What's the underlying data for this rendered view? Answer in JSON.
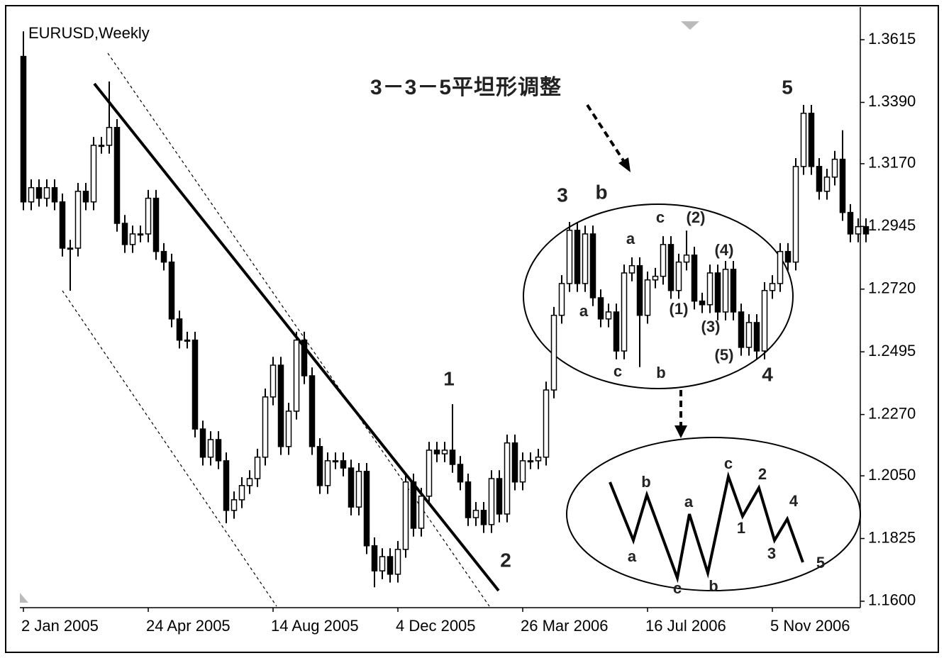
{
  "chart_data": {
    "type": "candlestick",
    "title": "EURUSD,Weekly",
    "annotations": [
      "3－3－5平坦形调整",
      "5",
      "3",
      "b",
      "1",
      "2",
      "4",
      "c",
      "(2)",
      "(4)",
      "a",
      "a",
      "(1)",
      "(3)",
      "(5)",
      "c",
      "b",
      "b",
      "a",
      "a",
      "c",
      "b",
      "c",
      "1",
      "2",
      "3",
      "4",
      "5"
    ],
    "categories": [
      "2 Jan 2005",
      null,
      null,
      null,
      null,
      null,
      null,
      null,
      null,
      null,
      null,
      null,
      null,
      null,
      null,
      null,
      "24 Apr 2005",
      null,
      null,
      null,
      null,
      null,
      null,
      null,
      null,
      null,
      null,
      null,
      null,
      null,
      null,
      null,
      "14 Aug 2005",
      null,
      null,
      null,
      null,
      null,
      null,
      null,
      null,
      null,
      null,
      null,
      null,
      null,
      null,
      null,
      "4 Dec 2005",
      null,
      null,
      null,
      null,
      null,
      null,
      null,
      null,
      null,
      null,
      null,
      null,
      null,
      null,
      null,
      "26 Mar 2006",
      null,
      null,
      null,
      null,
      null,
      null,
      null,
      null,
      null,
      null,
      null,
      null,
      null,
      null,
      null,
      "16 Jul 2006",
      null,
      null,
      null,
      null,
      null,
      null,
      null,
      null,
      null,
      null,
      null,
      null,
      null,
      null,
      null,
      "5 Nov 2006",
      null,
      null,
      null,
      null,
      null,
      null,
      null,
      null,
      null,
      null,
      null,
      null
    ],
    "open": [
      1.3555,
      1.3033,
      1.3084,
      1.3046,
      1.3084,
      1.3033,
      1.2867,
      1.2867,
      1.3071,
      1.3033,
      1.3236,
      1.3236,
      1.33,
      1.2956,
      1.288,
      1.2918,
      1.2918,
      1.3046,
      1.2855,
      1.2817,
      1.2613,
      1.2537,
      1.2537,
      1.2218,
      1.2117,
      1.218,
      1.2104,
      1.1926,
      1.1964,
      1.2015,
      1.204,
      1.2117,
      1.2333,
      1.2447,
      1.2155,
      1.2282,
      1.2537,
      1.2409,
      1.2155,
      1.2015,
      1.2104,
      1.2104,
      1.2078,
      1.1938,
      1.2066,
      1.1799,
      1.1709,
      1.176,
      1.1697,
      1.1786,
      1.2028,
      1.1862,
      1.1977,
      1.2142,
      1.2129,
      1.2142,
      1.2091,
      1.2028,
      1.19,
      1.1926,
      1.1875,
      1.204,
      1.1913,
      1.2168,
      1.2028,
      1.2104,
      1.2104,
      1.2117,
      1.2358,
      1.2626,
      1.274,
      1.2931,
      1.274,
      1.2918,
      1.2689,
      1.2613,
      1.2638,
      1.2498,
      1.2778,
      1.2804,
      1.2626,
      1.2753,
      1.2766,
      1.288,
      1.2715,
      1.2817,
      1.2842,
      1.2677,
      1.2664,
      1.2778,
      1.2638,
      1.2791,
      1.2638,
      1.2511,
      1.26,
      1.2498,
      1.2715,
      1.274,
      1.2855,
      1.2817,
      1.316,
      1.3351,
      1.316,
      1.3071,
      1.3122,
      1.3186,
      1.2995,
      1.2918,
      1.2944
    ],
    "high": [
      1.3645,
      1.3114,
      1.3114,
      1.3114,
      1.3114,
      1.3063,
      1.2897,
      1.3101,
      1.3101,
      1.3266,
      1.3266,
      1.3465,
      1.333,
      1.2986,
      1.2948,
      1.2948,
      1.3076,
      1.3076,
      1.2885,
      1.2847,
      1.2643,
      1.2567,
      1.2567,
      1.2248,
      1.221,
      1.221,
      1.2134,
      1.1994,
      1.2045,
      1.207,
      1.2147,
      1.2363,
      1.2477,
      1.2477,
      1.2312,
      1.2567,
      1.2567,
      1.2439,
      1.2185,
      1.2134,
      1.2134,
      1.2134,
      1.2108,
      1.2096,
      1.2096,
      1.1829,
      1.179,
      1.179,
      1.1816,
      1.2058,
      1.2058,
      1.2007,
      1.2172,
      1.2172,
      1.2172,
      1.2307,
      1.2121,
      1.2058,
      1.1956,
      1.1956,
      1.207,
      1.207,
      1.2198,
      1.2198,
      1.2134,
      1.2134,
      1.2147,
      1.2388,
      1.2656,
      1.277,
      1.2961,
      1.2961,
      1.2948,
      1.2948,
      1.2719,
      1.2668,
      1.2668,
      1.2808,
      1.2834,
      1.2834,
      1.2783,
      1.2796,
      1.291,
      1.291,
      1.2847,
      1.293,
      1.2872,
      1.2707,
      1.2808,
      1.2808,
      1.2821,
      1.2821,
      1.2668,
      1.263,
      1.263,
      1.2745,
      1.277,
      1.2885,
      1.2885,
      1.319,
      1.3381,
      1.3381,
      1.319,
      1.3152,
      1.3216,
      1.329,
      1.3025,
      1.2974,
      1.2974
    ],
    "low": [
      1.3003,
      1.3003,
      1.3016,
      1.3016,
      1.3003,
      1.2837,
      1.2714,
      1.2837,
      1.3003,
      1.3003,
      1.3206,
      1.3206,
      1.2926,
      1.285,
      1.285,
      1.2888,
      1.2888,
      1.2825,
      1.2787,
      1.2583,
      1.2507,
      1.2507,
      1.2188,
      1.2087,
      1.2087,
      1.2074,
      1.188,
      1.1896,
      1.1934,
      1.1985,
      1.201,
      1.2087,
      1.2303,
      1.2125,
      1.2125,
      1.2252,
      1.2379,
      1.2125,
      1.1985,
      1.1985,
      1.2074,
      1.2048,
      1.1908,
      1.1908,
      1.1769,
      1.165,
      1.1679,
      1.1667,
      1.1667,
      1.1756,
      1.1832,
      1.1832,
      1.1947,
      1.2099,
      1.2099,
      1.2061,
      1.1998,
      1.187,
      1.187,
      1.1845,
      1.1845,
      1.1883,
      1.1883,
      1.1998,
      1.1998,
      1.2074,
      1.2074,
      1.2087,
      1.2328,
      1.2596,
      1.271,
      1.271,
      1.271,
      1.2659,
      1.2583,
      1.2583,
      1.2468,
      1.2468,
      1.2748,
      1.244,
      1.2596,
      1.2723,
      1.2736,
      1.2685,
      1.2685,
      1.2787,
      1.2647,
      1.2634,
      1.2634,
      1.2608,
      1.2608,
      1.2608,
      1.2481,
      1.2481,
      1.2468,
      1.2468,
      1.2685,
      1.271,
      1.2787,
      1.2787,
      1.313,
      1.313,
      1.3041,
      1.3041,
      1.3092,
      1.2965,
      1.2888,
      1.2888,
      1.2888
    ],
    "close": [
      1.3033,
      1.3084,
      1.3046,
      1.3084,
      1.3033,
      1.2867,
      1.2867,
      1.3071,
      1.3033,
      1.3236,
      1.3236,
      1.33,
      1.2956,
      1.288,
      1.2918,
      1.2918,
      1.3046,
      1.2855,
      1.2817,
      1.2613,
      1.2537,
      1.2537,
      1.2218,
      1.2117,
      1.218,
      1.2104,
      1.1926,
      1.1964,
      1.2015,
      1.204,
      1.2117,
      1.2333,
      1.2447,
      1.2155,
      1.2282,
      1.2537,
      1.2409,
      1.2155,
      1.2015,
      1.2104,
      1.2104,
      1.2078,
      1.1938,
      1.2066,
      1.1799,
      1.1709,
      1.176,
      1.1697,
      1.1786,
      1.2028,
      1.1862,
      1.1977,
      1.2142,
      1.2129,
      1.2142,
      1.2091,
      1.2028,
      1.19,
      1.1926,
      1.1875,
      1.204,
      1.1913,
      1.2168,
      1.2028,
      1.2104,
      1.2104,
      1.2117,
      1.2358,
      1.2626,
      1.274,
      1.2931,
      1.274,
      1.2918,
      1.2689,
      1.2613,
      1.2638,
      1.2498,
      1.2778,
      1.2804,
      1.2626,
      1.2753,
      1.2766,
      1.288,
      1.2715,
      1.2817,
      1.2842,
      1.2677,
      1.2664,
      1.2778,
      1.2638,
      1.2791,
      1.2638,
      1.2511,
      1.26,
      1.2498,
      1.2715,
      1.274,
      1.2855,
      1.2817,
      1.316,
      1.3351,
      1.316,
      1.3071,
      1.3122,
      1.3186,
      1.2995,
      1.2918,
      1.2944,
      1.2918
    ],
    "up_color": "#ffffff",
    "down_color": "#000000",
    "ylim": [
      1.1582,
      1.3732
    ],
    "yticks": [
      1.3615,
      {
        "value": 1.339,
        "label": "1.3390"
      },
      {
        "value": 1.317,
        "label": "1.3170"
      },
      1.2945,
      {
        "value": 1.272,
        "label": "1.2720"
      },
      1.2495,
      {
        "value": 1.227,
        "label": "1.2270"
      },
      {
        "value": 1.205,
        "label": "1.2050"
      },
      1.1825,
      {
        "value": 1.16,
        "label": "1.1600"
      }
    ]
  }
}
